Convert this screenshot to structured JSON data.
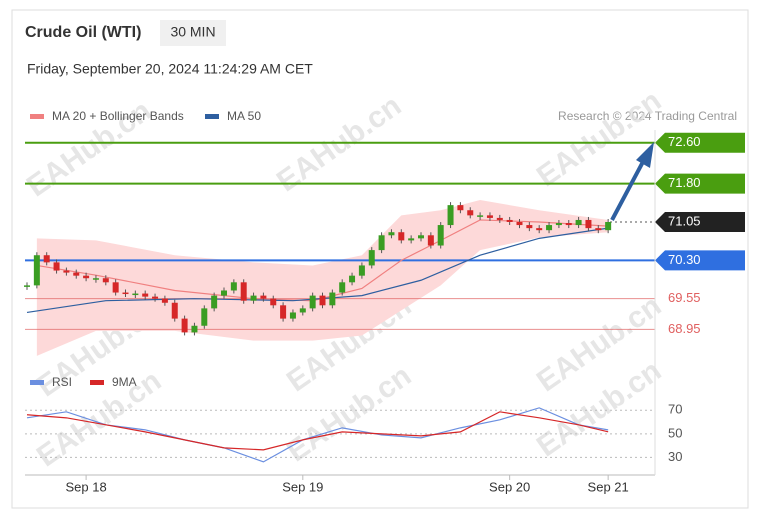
{
  "header": {
    "title": "Crude Oil (WTI)",
    "timeframe": "30 MIN",
    "date": "Friday, September 20, 2024 11:24:29 AM CET",
    "credit": "Research © 2024 Trading Central",
    "watermark": "EAHub.cn"
  },
  "chart_data": [
    {
      "type": "candlestick",
      "categories": [
        null,
        null,
        null,
        null,
        null,
        null,
        "Sep 18",
        null,
        null,
        null,
        null,
        null,
        null,
        null,
        null,
        null,
        null,
        null,
        null,
        null,
        null,
        null,
        null,
        null,
        null,
        null,
        null,
        null,
        "Sep 19",
        null,
        null,
        null,
        null,
        null,
        null,
        null,
        null,
        null,
        null,
        null,
        null,
        null,
        null,
        null,
        null,
        null,
        null,
        null,
        null,
        "Sep 20",
        null,
        null,
        null,
        null,
        null,
        null,
        null,
        null,
        null,
        "Sep 21"
      ],
      "values": [
        69.81,
        70.4,
        70.26,
        70.1,
        70.06,
        70.0,
        69.95,
        69.95,
        69.87,
        69.67,
        69.65,
        69.65,
        69.59,
        69.55,
        69.47,
        69.16,
        68.89,
        69.02,
        69.36,
        69.61,
        69.71,
        69.87,
        69.51,
        69.61,
        69.55,
        69.42,
        69.16,
        69.28,
        69.36,
        69.61,
        69.42,
        69.67,
        69.87,
        70.0,
        70.2,
        70.5,
        70.79,
        70.85,
        70.69,
        70.73,
        70.79,
        70.59,
        70.99,
        71.38,
        71.28,
        71.18,
        71.18,
        71.13,
        71.09,
        71.05,
        70.99,
        70.93,
        70.89,
        70.99,
        71.03,
        70.99,
        71.09,
        70.93,
        70.89,
        71.05
      ],
      "up_color": "#3a9d23",
      "down_color": "#d62728",
      "ylim": [
        68.35,
        72.85
      ],
      "series": [
        {
          "name": "MA 20 + Bollinger Bands",
          "color": "#f08080",
          "band_color": "#fdd9d9",
          "x": [
            1,
            7,
            15,
            23,
            29,
            34,
            38,
            42,
            46,
            52,
            59
          ],
          "values": [
            70.2,
            70.01,
            69.71,
            69.55,
            69.51,
            69.75,
            70.3,
            70.69,
            71.09,
            71.05,
            70.97
          ],
          "upper": [
            70.73,
            70.69,
            70.4,
            70.26,
            70.2,
            70.4,
            71.18,
            71.28,
            71.48,
            71.28,
            71.09
          ],
          "lower": [
            68.43,
            68.92,
            68.92,
            68.73,
            68.73,
            68.83,
            69.32,
            69.81,
            70.5,
            70.75,
            70.85
          ]
        },
        {
          "name": "MA 50",
          "color": "#2e5fa0",
          "x": [
            0,
            8,
            17,
            27,
            34,
            40,
            46,
            52,
            59
          ],
          "values": [
            69.28,
            69.51,
            69.55,
            69.51,
            69.61,
            69.91,
            70.4,
            70.73,
            70.93
          ]
        }
      ],
      "levels": [
        {
          "value": 72.6,
          "label": "72.60",
          "color": "#4a9e10",
          "tag": true,
          "style": "solid"
        },
        {
          "value": 71.8,
          "label": "71.80",
          "color": "#4a9e10",
          "tag": true,
          "style": "solid"
        },
        {
          "value": 71.05,
          "label": "71.05",
          "color": "#222222",
          "tag": true,
          "style": "dotted"
        },
        {
          "value": 70.3,
          "label": "70.30",
          "color": "#2f6fe0",
          "tag": true,
          "style": "solid"
        },
        {
          "value": 69.55,
          "label": "69.55",
          "color": "#e06060",
          "tag": false,
          "style": "solid"
        },
        {
          "value": 68.95,
          "label": "68.95",
          "color": "#e06060",
          "tag": false,
          "style": "solid"
        }
      ]
    },
    {
      "type": "line",
      "ylim": [
        21,
        83
      ],
      "yticks": [
        70,
        50,
        30
      ],
      "series": [
        {
          "name": "RSI",
          "color": "#6b8fe0",
          "x": [
            0,
            4,
            8,
            12,
            16,
            20,
            24,
            28,
            32,
            36,
            40,
            44,
            48,
            52,
            56,
            59
          ],
          "values": [
            63.6,
            68.7,
            57.7,
            53.4,
            44.9,
            38.1,
            26.2,
            44.9,
            55.1,
            49.1,
            46.6,
            55.1,
            61.9,
            72.1,
            57.7,
            53.4
          ]
        },
        {
          "name": "9MA",
          "color": "#d62728",
          "x": [
            0,
            4,
            8,
            12,
            16,
            20,
            24,
            28,
            32,
            36,
            40,
            44,
            48,
            52,
            56,
            59
          ],
          "values": [
            66.2,
            63.6,
            57.7,
            51.7,
            44.9,
            38.1,
            36.4,
            44.9,
            51.7,
            50.0,
            48.3,
            51.7,
            68.7,
            63.6,
            57.7,
            51.7
          ]
        }
      ]
    }
  ]
}
